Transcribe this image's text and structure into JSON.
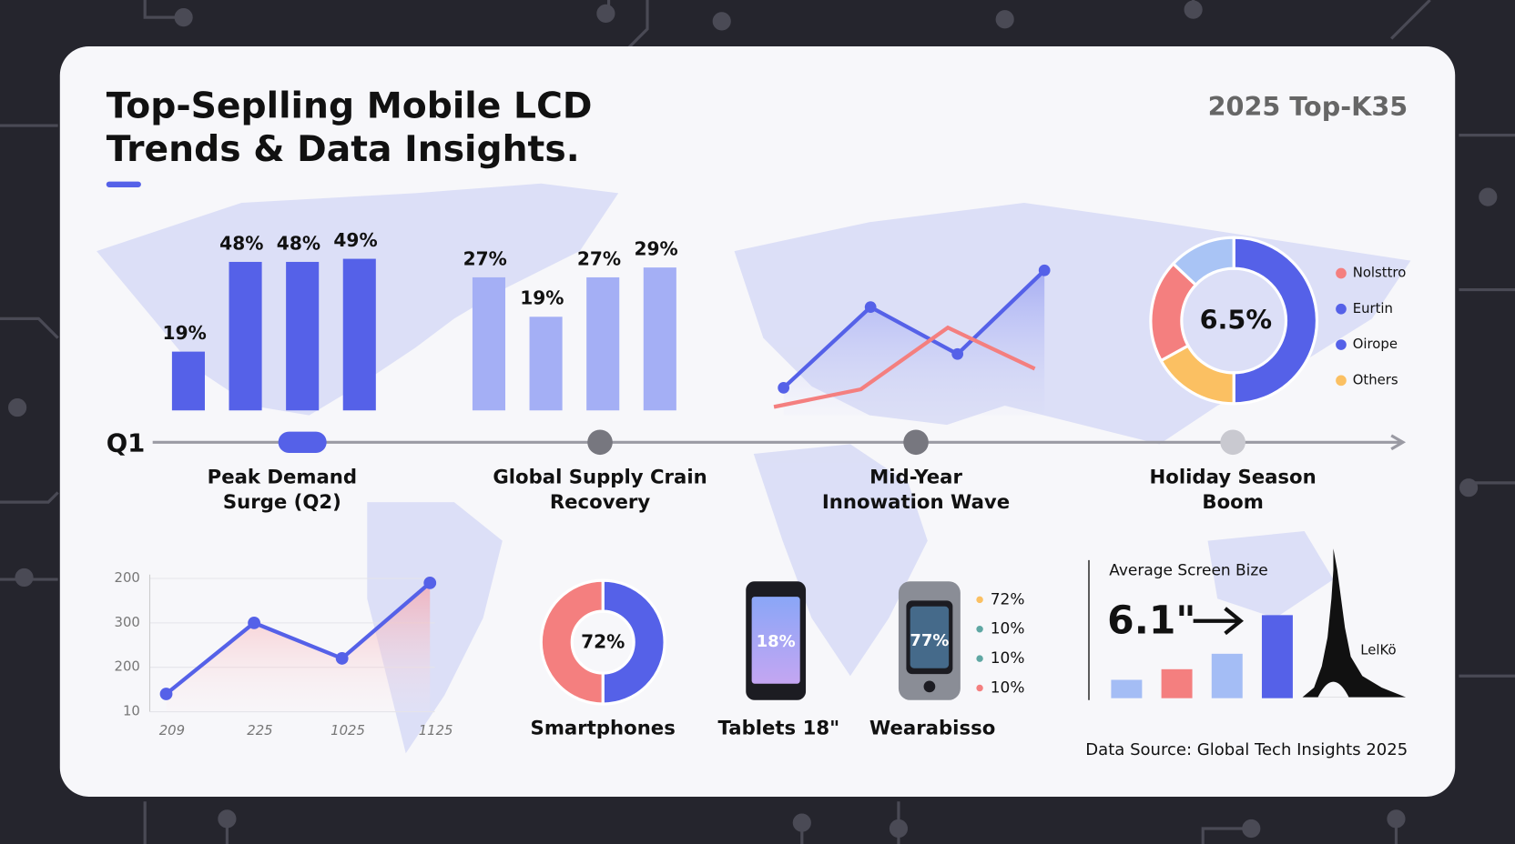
{
  "header": {
    "title": [
      "Top-Seplling Mobile LCD",
      "Trends & Data Insights."
    ],
    "badge": "2025 Top-K35"
  },
  "bar_groups": [
    {
      "color": "#5561e8",
      "values": [
        19,
        48,
        48,
        49
      ],
      "value_labels": [
        "19%",
        "48%",
        "48%",
        "49%"
      ]
    },
    {
      "color": "#a4aff5",
      "values": [
        27,
        19,
        27,
        29
      ],
      "value_labels": [
        "27%",
        "19%",
        "27%",
        "29%"
      ]
    }
  ],
  "timeline": {
    "start": "Q1",
    "milestones": [
      [
        "Peak Demand",
        "Surge (Q2)"
      ],
      [
        "Global Supply Crain",
        "Recovery"
      ],
      [
        "Mid-Year",
        "Innowation Wave"
      ],
      [
        "Holiday Season",
        "Boom"
      ]
    ]
  },
  "trend_lines": [
    {
      "color": "#5561e8",
      "values": [
        2,
        7.5,
        4.3,
        10
      ]
    },
    {
      "color": "#f47f7f",
      "values": [
        0.7,
        1.9,
        6.1,
        3.3
      ]
    }
  ],
  "region_donut": {
    "center": "6.5%",
    "segments": [
      {
        "color": "#5561e8",
        "value": 50
      },
      {
        "color": "#fbc062",
        "value": 17
      },
      {
        "color": "#f47f7f",
        "value": 20
      },
      {
        "color": "#a9c4f5",
        "value": 13
      }
    ],
    "legend": [
      {
        "name": "Nolsttro",
        "color": "#f47f7f"
      },
      {
        "name": "Eurtin",
        "color": "#5561e8"
      },
      {
        "name": "Oirope",
        "color": "#5561e8"
      },
      {
        "name": "Others",
        "color": "#fbc062"
      }
    ]
  },
  "growth_chart": {
    "color": "#5561e8",
    "values": [
      0.4,
      2,
      1.2,
      2.9
    ],
    "xlabels": [
      "209",
      "225",
      "1025",
      "1125"
    ],
    "yticks": [
      {
        "value": 3,
        "label": "200"
      },
      {
        "value": 2,
        "label": "300"
      },
      {
        "value": 1,
        "label": "200"
      },
      {
        "value": 0,
        "label": "10"
      }
    ],
    "ylim": [
      0,
      3
    ]
  },
  "devices": {
    "smartphones": {
      "center": "72%",
      "label": "Smartphones",
      "segments": [
        {
          "color": "#5561e8",
          "value": 50
        },
        {
          "color": "#f47f7f",
          "value": 50
        }
      ]
    },
    "tablets": {
      "center": "18%",
      "label": "Tablets 18\""
    },
    "wearables": {
      "center": "77%",
      "label": "Wearabisso",
      "legend": [
        {
          "name": "72%",
          "color": "#fbc062"
        },
        {
          "name": "10%",
          "color": "#5fa7a3"
        },
        {
          "name": "10%",
          "color": "#5fa7a3"
        },
        {
          "name": "10%",
          "color": "#f47f7f"
        }
      ]
    }
  },
  "screen_size": {
    "title": "Average Screen Bize",
    "value": "6.1\"",
    "bars": [
      {
        "color": "#a4bdf5",
        "value": 19
      },
      {
        "color": "#f47f7f",
        "value": 30
      },
      {
        "color": "#a4bdf5",
        "value": 46
      },
      {
        "color": "#5561e8",
        "value": 86
      }
    ],
    "landmark": "LelKö"
  },
  "footer": "Data Source: Global Tech Insights 2025"
}
